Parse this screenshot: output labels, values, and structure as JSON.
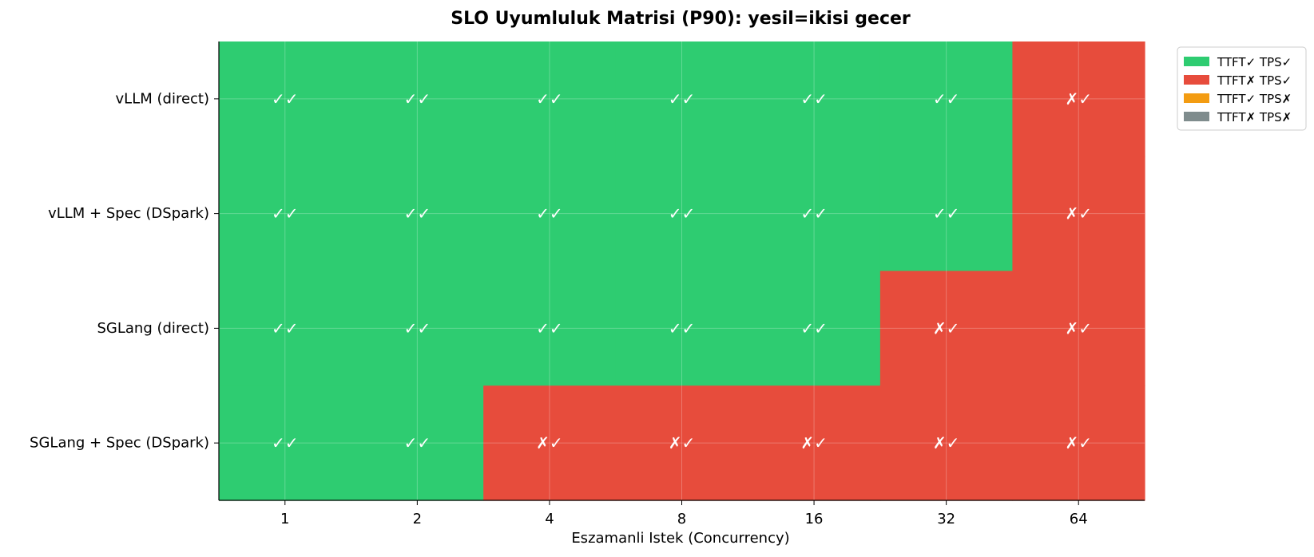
{
  "chart_data": {
    "type": "heatmap",
    "title": "SLO Uyumluluk Matrisi (P90):  yesil=ikisi gecer",
    "xlabel": "Eszamanli Istek (Concurrency)",
    "ylabel": "",
    "x_categories": [
      "1",
      "2",
      "4",
      "8",
      "16",
      "32",
      "64"
    ],
    "y_categories": [
      "vLLM (direct)",
      "vLLM + Spec (DSpark)",
      "SGLang (direct)",
      "SGLang + Spec (DSpark)"
    ],
    "cells": [
      [
        "✓✓",
        "✓✓",
        "✓✓",
        "✓✓",
        "✓✓",
        "✓✓",
        "✗✓"
      ],
      [
        "✓✓",
        "✓✓",
        "✓✓",
        "✓✓",
        "✓✓",
        "✓✓",
        "✗✓"
      ],
      [
        "✓✓",
        "✓✓",
        "✓✓",
        "✓✓",
        "✓✓",
        "✗✓",
        "✗✓"
      ],
      [
        "✓✓",
        "✓✓",
        "✗✓",
        "✗✓",
        "✗✓",
        "✗✓",
        "✗✓"
      ]
    ],
    "status_colors": {
      "✓✓": "#2ecc71",
      "✗✓": "#e74c3c",
      "✓✗": "#f39c12",
      "✗✗": "#7f8c8d"
    },
    "legend": [
      {
        "label": "TTFT✓ TPS✓",
        "color": "#2ecc71"
      },
      {
        "label": "TTFT✗ TPS✓",
        "color": "#e74c3c"
      },
      {
        "label": "TTFT✓ TPS✗",
        "color": "#f39c12"
      },
      {
        "label": "TTFT✗ TPS✗",
        "color": "#7f8c8d"
      }
    ],
    "legend_placement": "upper-right-outside",
    "grid": true
  }
}
